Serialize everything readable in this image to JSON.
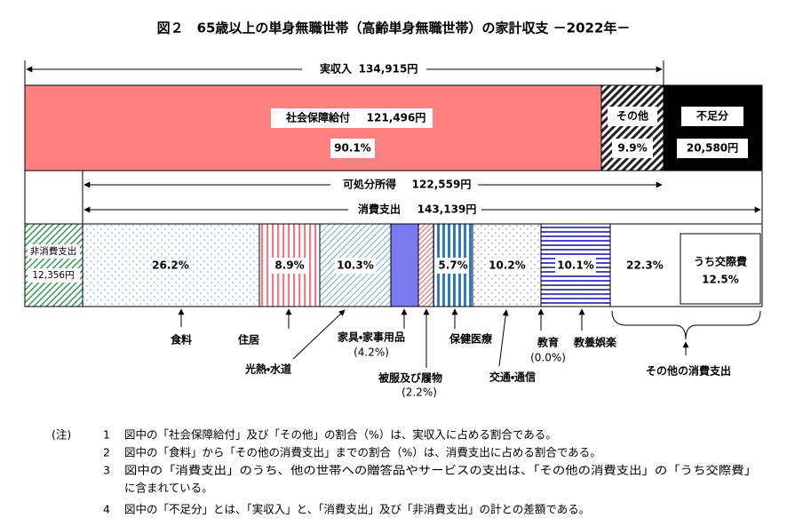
{
  "title": "図２　65歳以上の単身無職世帯（高齢単身無職世帯）の家計収支 －2022年－",
  "income": {
    "label": "実収入",
    "amount": "134,915円"
  },
  "top_bar": {
    "social_security": {
      "label": "社会保障給付",
      "amount": "121,496円",
      "share": "90.1%"
    },
    "other": {
      "label": "その他",
      "share": "9.9%"
    },
    "shortfall": {
      "label": "不足分",
      "amount": "20,580円"
    }
  },
  "disposable": {
    "label": "可処分所得",
    "amount": "122,559円"
  },
  "consumption": {
    "label": "消費支出",
    "amount": "143,139円"
  },
  "non_consumption": {
    "label": "非消費支出",
    "amount": "12,356円"
  },
  "items": [
    {
      "label": "食料",
      "share": "26.2%"
    },
    {
      "label": "住居",
      "share": "8.9%"
    },
    {
      "label": "光熱・水道",
      "share": "10.3%"
    },
    {
      "label": "家具・家事用品",
      "share": "(4.2%)"
    },
    {
      "label": "被服及び履物",
      "share": "(2.2%)"
    },
    {
      "label": "保健医療",
      "share": "5.7%"
    },
    {
      "label": "交通・通信",
      "share": "10.2%"
    },
    {
      "label": "教育",
      "share": "(0.0%)"
    },
    {
      "label": "教養娯楽",
      "share": "10.1%"
    },
    {
      "label": "その他の消費支出",
      "share": "22.3%",
      "sub": {
        "label": "うち交際費",
        "share": "12.5%"
      }
    }
  ],
  "notes": {
    "marker": "(注)",
    "items": [
      {
        "number": "1",
        "lines": [
          "図中の「社会保障給付」及び「その他」の割合（%）は、実収入に占める割合である。"
        ]
      },
      {
        "number": "2",
        "lines": [
          "図中の「食料」から「その他の消費支出」までの割合（%）は、消費支出に占める割合である。"
        ]
      },
      {
        "number": "3",
        "lines": [
          "図中の「消費支出」のうち、他の世帯への贈答品やサービスの支出は、「その他の消費支出」の「うち交際費」",
          "に含まれている。"
        ]
      },
      {
        "number": "4",
        "lines": [
          "図中の「不足分」とは、「実収入」と、「消費支出」及び「非消費支出」の計との差額である。"
        ]
      }
    ]
  }
}
